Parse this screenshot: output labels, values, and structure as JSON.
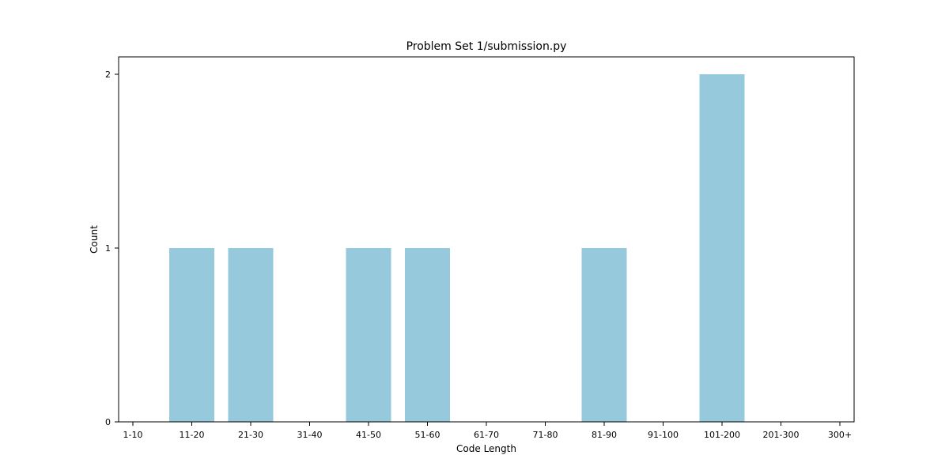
{
  "chart_data": {
    "type": "bar",
    "title": "Problem Set 1/submission.py",
    "xlabel": "Code Length",
    "ylabel": "Count",
    "categories": [
      "1-10",
      "11-20",
      "21-30",
      "31-40",
      "41-50",
      "51-60",
      "61-70",
      "71-80",
      "81-90",
      "91-100",
      "101-200",
      "201-300",
      "300+"
    ],
    "values": [
      0,
      1,
      1,
      0,
      1,
      1,
      0,
      0,
      1,
      0,
      2,
      0,
      0
    ],
    "ylim": [
      0,
      2.1
    ],
    "yticks": [
      0,
      1,
      2
    ],
    "grid": false,
    "legend": "none",
    "bar_color": "#96c9dc",
    "axis_color": "#000000"
  }
}
